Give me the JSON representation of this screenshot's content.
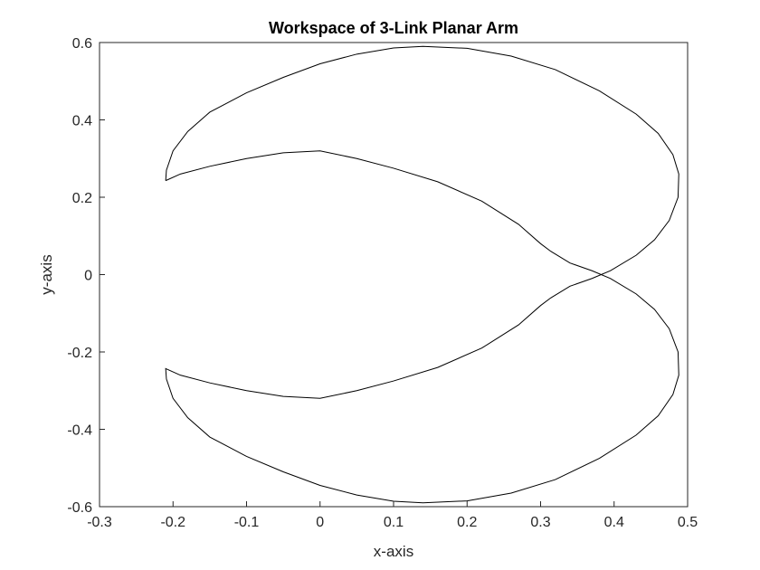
{
  "chart_data": {
    "type": "line",
    "title": "Workspace of 3-Link Planar Arm",
    "xlabel": "x-axis",
    "ylabel": "y-axis",
    "xlim": [
      -0.3,
      0.5
    ],
    "ylim": [
      -0.6,
      0.6
    ],
    "xticks": [
      -0.3,
      -0.2,
      -0.1,
      0,
      0.1,
      0.2,
      0.3,
      0.4,
      0.5
    ],
    "xtick_labels": [
      "-0.3",
      "-0.2",
      "-0.1",
      "0",
      "0.1",
      "0.2",
      "0.3",
      "0.4",
      "0.5"
    ],
    "yticks": [
      -0.6,
      -0.4,
      -0.2,
      0,
      0.2,
      0.4,
      0.6
    ],
    "ytick_labels": [
      "-0.6",
      "-0.4",
      "-0.2",
      "0",
      "0.2",
      "0.4",
      "0.6"
    ],
    "grid": false,
    "line_color": "#000000",
    "series": [
      {
        "points": [
          [
            -0.21,
            0.243
          ],
          [
            -0.209,
            0.27
          ],
          [
            -0.2,
            0.32
          ],
          [
            -0.18,
            0.37
          ],
          [
            -0.15,
            0.42
          ],
          [
            -0.1,
            0.47
          ],
          [
            -0.05,
            0.51
          ],
          [
            0.0,
            0.545
          ],
          [
            0.05,
            0.57
          ],
          [
            0.1,
            0.586
          ],
          [
            0.14,
            0.59
          ],
          [
            0.2,
            0.585
          ],
          [
            0.26,
            0.565
          ],
          [
            0.32,
            0.53
          ],
          [
            0.38,
            0.475
          ],
          [
            0.43,
            0.415
          ],
          [
            0.46,
            0.365
          ],
          [
            0.48,
            0.31
          ],
          [
            0.488,
            0.26
          ],
          [
            0.487,
            0.2
          ],
          [
            0.475,
            0.14
          ],
          [
            0.455,
            0.09
          ],
          [
            0.43,
            0.05
          ],
          [
            0.395,
            0.01
          ],
          [
            0.37,
            -0.01
          ],
          [
            0.34,
            -0.03
          ],
          [
            0.314,
            -0.06
          ],
          [
            0.3,
            -0.08
          ],
          [
            0.27,
            -0.13
          ],
          [
            0.22,
            -0.19
          ],
          [
            0.16,
            -0.24
          ],
          [
            0.1,
            -0.275
          ],
          [
            0.05,
            -0.3
          ],
          [
            0.0,
            -0.32
          ],
          [
            -0.05,
            -0.315
          ],
          [
            -0.1,
            -0.3
          ],
          [
            -0.15,
            -0.28
          ],
          [
            -0.19,
            -0.26
          ],
          [
            -0.21,
            -0.243
          ],
          [
            -0.209,
            -0.27
          ],
          [
            -0.2,
            -0.32
          ],
          [
            -0.18,
            -0.37
          ],
          [
            -0.15,
            -0.42
          ],
          [
            -0.1,
            -0.47
          ],
          [
            -0.05,
            -0.51
          ],
          [
            0.0,
            -0.545
          ],
          [
            0.05,
            -0.57
          ],
          [
            0.1,
            -0.586
          ],
          [
            0.14,
            -0.59
          ],
          [
            0.2,
            -0.585
          ],
          [
            0.26,
            -0.565
          ],
          [
            0.32,
            -0.53
          ],
          [
            0.38,
            -0.475
          ],
          [
            0.43,
            -0.415
          ],
          [
            0.46,
            -0.365
          ],
          [
            0.48,
            -0.31
          ],
          [
            0.488,
            -0.26
          ],
          [
            0.487,
            -0.2
          ],
          [
            0.475,
            -0.14
          ],
          [
            0.455,
            -0.09
          ],
          [
            0.43,
            -0.05
          ],
          [
            0.395,
            -0.01
          ],
          [
            0.37,
            0.01
          ],
          [
            0.34,
            0.03
          ],
          [
            0.314,
            0.06
          ],
          [
            0.3,
            0.08
          ],
          [
            0.27,
            0.13
          ],
          [
            0.22,
            0.19
          ],
          [
            0.16,
            0.24
          ],
          [
            0.1,
            0.275
          ],
          [
            0.05,
            0.3
          ],
          [
            0.0,
            0.32
          ],
          [
            -0.05,
            0.315
          ],
          [
            -0.1,
            0.3
          ],
          [
            -0.15,
            0.28
          ],
          [
            -0.19,
            0.26
          ],
          [
            -0.21,
            0.243
          ]
        ]
      }
    ]
  }
}
